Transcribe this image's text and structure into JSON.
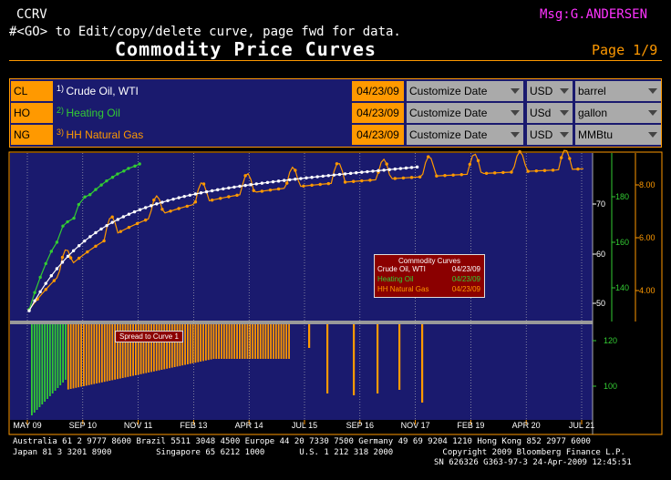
{
  "header": {
    "code": "CCRV",
    "instruction": "#<GO> to Edit/copy/delete curve, page fwd for data.",
    "msg": "Msg:G.ANDERSEN",
    "title": "Commodity Price Curves",
    "page": "Page 1/9"
  },
  "curves": [
    {
      "ticker": "CL",
      "num": "1)",
      "name": "Crude Oil, WTI",
      "date": "04/23/09",
      "mode": "Customize Date",
      "currency": "USD",
      "unit": "barrel",
      "color": "#ffffff"
    },
    {
      "ticker": "HO",
      "num": "2)",
      "name": "Heating Oil",
      "date": "04/23/09",
      "mode": "Customize Date",
      "currency": "USd",
      "unit": "gallon",
      "color": "#33cc33"
    },
    {
      "ticker": "NG",
      "num": "3)",
      "name": "HH Natural Gas",
      "date": "04/23/09",
      "mode": "Customize Date",
      "currency": "USD",
      "unit": "MMBtu",
      "color": "#ff9900"
    }
  ],
  "legend": {
    "title": "Commodity Curves",
    "rows": [
      {
        "name": "Crude Oil, WTI",
        "date": "04/23/09",
        "color": "#ffffff"
      },
      {
        "name": "Heating Oil",
        "date": "04/23/09",
        "color": "#33cc33"
      },
      {
        "name": "HH Natural Gas",
        "date": "04/23/09",
        "color": "#ff9900"
      }
    ]
  },
  "spread_label": "Spread to Curve 1",
  "chart_data": {
    "type": "line",
    "x_ticks": [
      "MAY 09",
      "SEP 10",
      "NOV 11",
      "FEB 13",
      "APR 14",
      "JUL 15",
      "SEP 16",
      "NOV 17",
      "FEB 19",
      "APR 20",
      "JUL 21"
    ],
    "axes": {
      "crude_oil": {
        "ticks": [
          50,
          60,
          70
        ],
        "unit": "USD/barrel"
      },
      "heating_oil": {
        "ticks": [
          140,
          160,
          180
        ],
        "unit": "USd/gallon"
      },
      "natural_gas": {
        "ticks": [
          "4.00",
          "6.00",
          "8.00"
        ],
        "unit": "USD/MMBtu"
      },
      "spread": {
        "ticks": [
          100,
          120
        ]
      }
    },
    "series": [
      {
        "name": "Crude Oil, WTI",
        "color": "#ffffff"
      },
      {
        "name": "Heating Oil",
        "color": "#33cc33"
      },
      {
        "name": "HH Natural Gas",
        "color": "#ff9900"
      }
    ]
  },
  "footer": {
    "line1": "Australia 61 2 9777 8600 Brazil 5511 3048 4500 Europe 44 20 7330 7500 Germany 49 69 9204 1210 Hong Kong 852 2977 6000",
    "line2": "Japan 81 3 3201 8900         Singapore 65 6212 1000       U.S. 1 212 318 2000          Copyright 2009 Bloomberg Finance L.P.",
    "line3": "SN 626326 G363-97-3 24-Apr-2009 12:45:51"
  }
}
